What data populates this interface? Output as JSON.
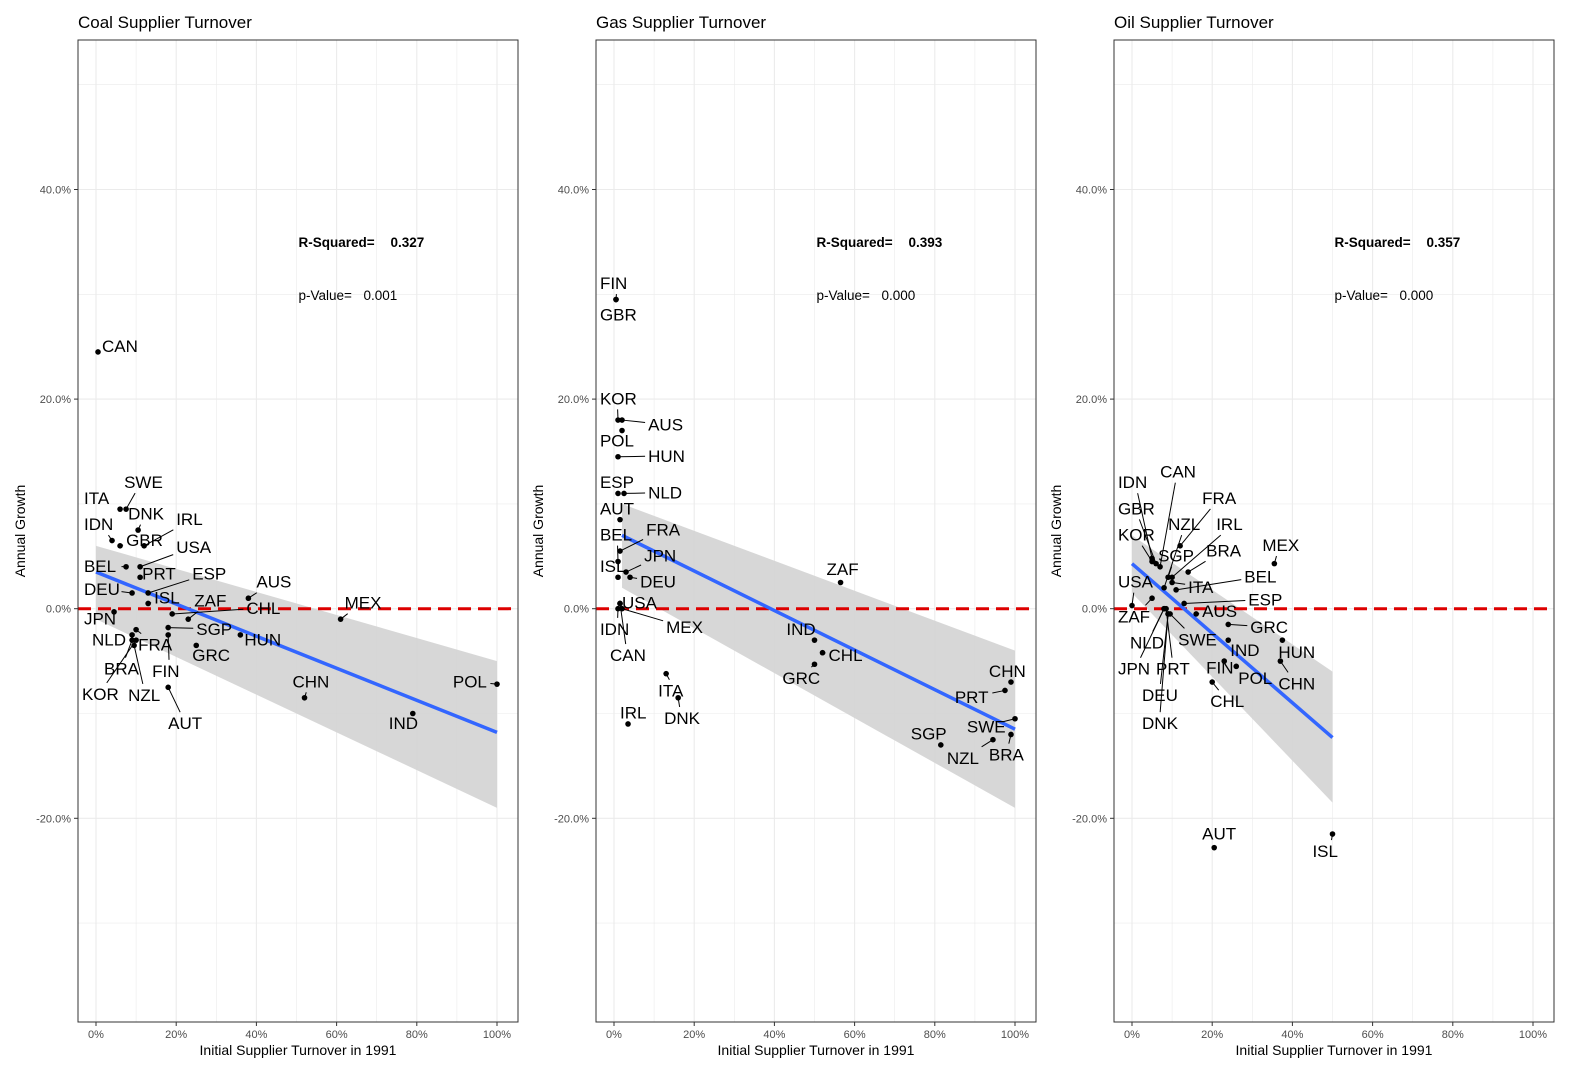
{
  "figure": {
    "ylabel": "Annual Growth",
    "xlabel": "Initial Supplier Turnover in 1991",
    "yticks": [
      "-20.0%",
      "0.0%",
      "20.0%",
      "40.0%"
    ],
    "xticks": [
      "0%",
      "20%",
      "40%",
      "60%",
      "80%",
      "100%"
    ],
    "r2_label": "R-Squared=",
    "p_label": "p-Value="
  },
  "colors": {
    "fit_line": "#3366ff",
    "ribbon": "#d3d3d3",
    "zero_line": "#dd0000",
    "grid": "#ebebeb",
    "points": "#000000"
  },
  "chart_data": [
    {
      "type": "scatter",
      "title": "Coal Supplier Turnover",
      "xlabel": "Initial Supplier Turnover in 1991",
      "ylabel": "Annual Growth",
      "xlim": [
        0,
        100
      ],
      "ylim": [
        -40,
        54
      ],
      "r_squared": "0.327",
      "p_value": "0.001",
      "fit": {
        "x0": 0,
        "y0": 3.5,
        "x1": 100,
        "y1": -11.8,
        "band_lo": [
          -1,
          -19
        ],
        "band_hi": [
          6,
          -5
        ]
      },
      "points": [
        {
          "label": "CAN",
          "x": 0.5,
          "y": 24.5,
          "lx": 1.5,
          "ly": 24.5
        },
        {
          "label": "SWE",
          "x": 7.5,
          "y": 9.5,
          "lx": 7,
          "ly": 11.5
        },
        {
          "label": "ITA",
          "x": 6,
          "y": 9.5,
          "lx": -3,
          "ly": 10
        },
        {
          "label": "DNK",
          "x": 10.5,
          "y": 7.5,
          "lx": 8,
          "ly": 8.5
        },
        {
          "label": "IRL",
          "x": 12,
          "y": 6,
          "lx": 20,
          "ly": 8
        },
        {
          "label": "IDN",
          "x": 4,
          "y": 6.5,
          "lx": -3,
          "ly": 7.5
        },
        {
          "label": "GBR",
          "x": 6,
          "y": 6,
          "lx": 7.5,
          "ly": 6
        },
        {
          "label": "USA",
          "x": 11,
          "y": 4,
          "lx": 20,
          "ly": 5.3
        },
        {
          "label": "BEL",
          "x": 7.5,
          "y": 4,
          "lx": -3,
          "ly": 3.5
        },
        {
          "label": "PRT",
          "x": 11,
          "y": 3,
          "lx": 11.5,
          "ly": 2.8
        },
        {
          "label": "ESP",
          "x": 13,
          "y": 1.5,
          "lx": 24,
          "ly": 2.8
        },
        {
          "label": "DEU",
          "x": 9,
          "y": 1.5,
          "lx": -3,
          "ly": 1.3
        },
        {
          "label": "AUS",
          "x": 38,
          "y": 1,
          "lx": 40,
          "ly": 2
        },
        {
          "label": "ISL",
          "x": 13,
          "y": 0.5,
          "lx": 14.5,
          "ly": 0.5
        },
        {
          "label": "ZAF",
          "x": 23,
          "y": -1,
          "lx": 24.5,
          "ly": 0.2
        },
        {
          "label": "CHL",
          "x": 19,
          "y": -0.5,
          "lx": 37.5,
          "ly": -0.5
        },
        {
          "label": "MEX",
          "x": 61,
          "y": -1,
          "lx": 62,
          "ly": 0
        },
        {
          "label": "JPN",
          "x": 4.5,
          "y": -0.3,
          "lx": -3,
          "ly": -1.5
        },
        {
          "label": "SGP",
          "x": 18,
          "y": -1.8,
          "lx": 25,
          "ly": -2.5
        },
        {
          "label": "NLD",
          "x": 9,
          "y": -2.5,
          "lx": -1,
          "ly": -3.5
        },
        {
          "label": "HUN",
          "x": 36,
          "y": -2.5,
          "lx": 37,
          "ly": -3.5
        },
        {
          "label": "FRA",
          "x": 10,
          "y": -2,
          "lx": 10.5,
          "ly": -4
        },
        {
          "label": "GRC",
          "x": 25,
          "y": -3.5,
          "lx": 24,
          "ly": -5
        },
        {
          "label": "BRA",
          "x": 9,
          "y": -3,
          "lx": 2,
          "ly": -6.3
        },
        {
          "label": "FIN",
          "x": 18,
          "y": -2.5,
          "lx": 14,
          "ly": -6.5
        },
        {
          "label": "CHN",
          "x": 52,
          "y": -8.5,
          "lx": 49,
          "ly": -7.5
        },
        {
          "label": "POL",
          "x": 100,
          "y": -7.2,
          "lx": 89,
          "ly": -7.5
        },
        {
          "label": "KOR",
          "x": 10,
          "y": -3,
          "lx": -3.5,
          "ly": -8.7
        },
        {
          "label": "NZL",
          "x": 9.5,
          "y": -3.5,
          "lx": 8,
          "ly": -8.8
        },
        {
          "label": "AUT",
          "x": 18,
          "y": -7.5,
          "lx": 18,
          "ly": -11.5
        },
        {
          "label": "IND",
          "x": 79,
          "y": -10,
          "lx": 73,
          "ly": -11.5
        }
      ]
    },
    {
      "type": "scatter",
      "title": "Gas Supplier Turnover",
      "xlabel": "Initial Supplier Turnover in 1991",
      "ylabel": "Annual Growth",
      "xlim": [
        0,
        100
      ],
      "ylim": [
        -40,
        54
      ],
      "r_squared": "0.393",
      "p_value": "0.000",
      "fit": {
        "x0": 2,
        "y0": 7,
        "x1": 100,
        "y1": -11.5,
        "band_lo": [
          2,
          -19
        ],
        "band_hi": [
          10,
          -4
        ]
      },
      "points": [
        {
          "label": "FIN",
          "x": 0.5,
          "y": 29.5,
          "lx": -3.5,
          "ly": 30.5
        },
        {
          "label": "GBR",
          "x": 0.5,
          "y": 29.5,
          "lx": -3.5,
          "ly": 27.5
        },
        {
          "label": "KOR",
          "x": 1,
          "y": 18,
          "lx": -3.5,
          "ly": 19.5
        },
        {
          "label": "AUS",
          "x": 2,
          "y": 18,
          "lx": 8.5,
          "ly": 17
        },
        {
          "label": "POL",
          "x": 2,
          "y": 17,
          "lx": -3.5,
          "ly": 15.5
        },
        {
          "label": "HUN",
          "x": 1,
          "y": 14.5,
          "lx": 8.5,
          "ly": 14
        },
        {
          "label": "ESP",
          "x": 1,
          "y": 11,
          "lx": -3.5,
          "ly": 11.5
        },
        {
          "label": "NLD",
          "x": 2.5,
          "y": 11,
          "lx": 8.5,
          "ly": 10.5
        },
        {
          "label": "AUT",
          "x": 1.5,
          "y": 8.5,
          "lx": -3.5,
          "ly": 9
        },
        {
          "label": "FRA",
          "x": 1.5,
          "y": 5.5,
          "lx": 8,
          "ly": 7
        },
        {
          "label": "BEL",
          "x": 1,
          "y": 4.5,
          "lx": -3.5,
          "ly": 6.5
        },
        {
          "label": "JPN",
          "x": 3,
          "y": 3.5,
          "lx": 7.5,
          "ly": 4.5
        },
        {
          "label": "ISL",
          "x": 1,
          "y": 3,
          "lx": -3.5,
          "ly": 3.5
        },
        {
          "label": "DEU",
          "x": 4,
          "y": 3,
          "lx": 6.5,
          "ly": 2
        },
        {
          "label": "ZAF",
          "x": 56.5,
          "y": 2.5,
          "lx": 53,
          "ly": 3.2
        },
        {
          "label": "USA",
          "x": 1.5,
          "y": 0.5,
          "lx": 2,
          "ly": 0
        },
        {
          "label": "IDN",
          "x": 1,
          "y": 0,
          "lx": -3.5,
          "ly": -2.5
        },
        {
          "label": "MEX",
          "x": 2,
          "y": 0,
          "lx": 13,
          "ly": -2.3
        },
        {
          "label": "IND",
          "x": 50,
          "y": -3,
          "lx": 43,
          "ly": -2.5
        },
        {
          "label": "CHL",
          "x": 52,
          "y": -4.2,
          "lx": 53.5,
          "ly": -5
        },
        {
          "label": "CAN",
          "x": 1.5,
          "y": 0.5,
          "lx": -1,
          "ly": -5
        },
        {
          "label": "GRC",
          "x": 50,
          "y": -5.3,
          "lx": 42,
          "ly": -7.2
        },
        {
          "label": "ITA",
          "x": 13,
          "y": -6.2,
          "lx": 11,
          "ly": -8.4
        },
        {
          "label": "CHN",
          "x": 99,
          "y": -7,
          "lx": 93.5,
          "ly": -6.5
        },
        {
          "label": "PRT",
          "x": 97.5,
          "y": -7.8,
          "lx": 85,
          "ly": -9
        },
        {
          "label": "DNK",
          "x": 16,
          "y": -8.5,
          "lx": 12.5,
          "ly": -11
        },
        {
          "label": "IRL",
          "x": 3.5,
          "y": -11,
          "lx": 1.5,
          "ly": -10.5
        },
        {
          "label": "SWE",
          "x": 100,
          "y": -10.5,
          "lx": 88,
          "ly": -11.8
        },
        {
          "label": "SGP",
          "x": 81.5,
          "y": -13,
          "lx": 74,
          "ly": -12.5
        },
        {
          "label": "BRA",
          "x": 99,
          "y": -12,
          "lx": 93.5,
          "ly": -14.5
        },
        {
          "label": "NZL",
          "x": 94.5,
          "y": -12.5,
          "lx": 83,
          "ly": -14.8
        }
      ]
    },
    {
      "type": "scatter",
      "title": "Oil Supplier Turnover",
      "xlabel": "Initial Supplier Turnover in 1991",
      "ylabel": "Annual Growth",
      "xlim": [
        0,
        100
      ],
      "ylim": [
        -40,
        54
      ],
      "r_squared": "0.357",
      "p_value": "0.000",
      "fit": {
        "x0": 0,
        "y0": 4.3,
        "x1": 50,
        "y1": -12.3,
        "band_lo": [
          1.5,
          -18.5
        ],
        "band_hi": [
          7,
          -6
        ]
      },
      "points": [
        {
          "label": "IDN",
          "x": 5,
          "y": 4.8,
          "lx": -3.5,
          "ly": 11.5
        },
        {
          "label": "CAN",
          "x": 7,
          "y": 4,
          "lx": 7,
          "ly": 12.5
        },
        {
          "label": "GBR",
          "x": 6,
          "y": 4.3,
          "lx": -3.5,
          "ly": 9
        },
        {
          "label": "FRA",
          "x": 12,
          "y": 6,
          "lx": 17.5,
          "ly": 10
        },
        {
          "label": "NZL",
          "x": 8,
          "y": 2,
          "lx": 9,
          "ly": 7.5
        },
        {
          "label": "IRL",
          "x": 10,
          "y": 3,
          "lx": 21,
          "ly": 7.5
        },
        {
          "label": "KOR",
          "x": 5,
          "y": 4.5,
          "lx": -3.5,
          "ly": 6.5
        },
        {
          "label": "SGP",
          "x": 9,
          "y": 3,
          "lx": 6.5,
          "ly": 4.5
        },
        {
          "label": "BRA",
          "x": 14,
          "y": 3.5,
          "lx": 18.5,
          "ly": 5
        },
        {
          "label": "MEX",
          "x": 35.5,
          "y": 4.3,
          "lx": 32.5,
          "ly": 5.5
        },
        {
          "label": "ITA",
          "x": 10,
          "y": 2.5,
          "lx": 14,
          "ly": 1.5
        },
        {
          "label": "USA",
          "x": 0,
          "y": 0.3,
          "lx": -3.5,
          "ly": 2
        },
        {
          "label": "BEL",
          "x": 11,
          "y": 1.8,
          "lx": 28,
          "ly": 2.5
        },
        {
          "label": "ESP",
          "x": 13,
          "y": 0.5,
          "lx": 29,
          "ly": 0.3
        },
        {
          "label": "AUS",
          "x": 16,
          "y": -0.5,
          "lx": 17.5,
          "ly": -0.8
        },
        {
          "label": "ZAF",
          "x": 5,
          "y": 1,
          "lx": -3.5,
          "ly": -1.3
        },
        {
          "label": "GRC",
          "x": 24,
          "y": -1.5,
          "lx": 29.5,
          "ly": -2.3
        },
        {
          "label": "SWE",
          "x": 9.5,
          "y": -0.5,
          "lx": 11.5,
          "ly": -3.5
        },
        {
          "label": "NLD",
          "x": 8,
          "y": 0,
          "lx": -0.5,
          "ly": -3.8
        },
        {
          "label": "IND",
          "x": 24,
          "y": -3,
          "lx": 24.5,
          "ly": -4.5
        },
        {
          "label": "HUN",
          "x": 37.5,
          "y": -3,
          "lx": 36.5,
          "ly": -4.7
        },
        {
          "label": "JPN",
          "x": 8,
          "y": 0,
          "lx": -3.5,
          "ly": -6.3
        },
        {
          "label": "PRT",
          "x": 8.5,
          "y": 0,
          "lx": 6,
          "ly": -6.3
        },
        {
          "label": "FIN",
          "x": 23,
          "y": -5,
          "lx": 18.5,
          "ly": -6.2
        },
        {
          "label": "POL",
          "x": 26,
          "y": -5.5,
          "lx": 26.5,
          "ly": -7.2
        },
        {
          "label": "CHN",
          "x": 37,
          "y": -5,
          "lx": 36.5,
          "ly": -7.7
        },
        {
          "label": "DEU",
          "x": 9,
          "y": -0.5,
          "lx": 2.5,
          "ly": -8.8
        },
        {
          "label": "CHL",
          "x": 20,
          "y": -7,
          "lx": 19.5,
          "ly": -9.4
        },
        {
          "label": "DNK",
          "x": 9,
          "y": -0.5,
          "lx": 2.5,
          "ly": -11.5
        },
        {
          "label": "AUT",
          "x": 20.5,
          "y": -22.8,
          "lx": 17.5,
          "ly": -22
        },
        {
          "label": "ISL",
          "x": 50,
          "y": -21.5,
          "lx": 45,
          "ly": -23.7
        }
      ]
    }
  ]
}
